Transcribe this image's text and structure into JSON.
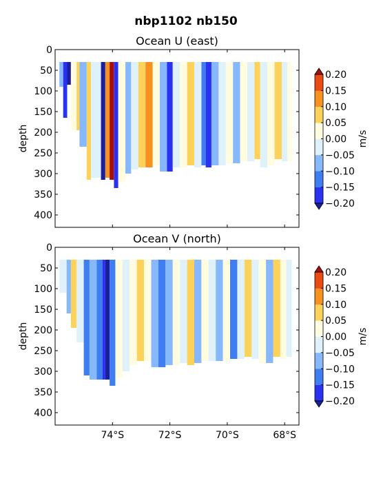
{
  "figure": {
    "title": "nbp1102 nb150"
  },
  "chart_data": [
    {
      "type": "heatmap",
      "title": "Ocean U (east)",
      "xlabel": "",
      "ylabel": "depth",
      "xlim": [
        -76.0,
        -67.5
      ],
      "ylim": [
        430,
        0
      ],
      "xtick_values": [
        -74,
        -72,
        -70,
        -68
      ],
      "xtick_labels": [
        "74°S",
        "72°S",
        "70°S",
        "68°S"
      ],
      "ytick_values": [
        0,
        50,
        100,
        150,
        200,
        250,
        300,
        350,
        400
      ],
      "ytick_labels": [
        "0",
        "50",
        "100",
        "150",
        "200",
        "250",
        "300",
        "350",
        "400"
      ],
      "colorbar": {
        "label": "m/s",
        "levels": [
          -0.2,
          -0.15,
          -0.1,
          -0.05,
          0.0,
          0.05,
          0.1,
          0.15,
          0.2
        ],
        "tick_labels": [
          "−0.20",
          "−0.15",
          "−0.10",
          "−0.05",
          "0.00",
          "0.05",
          "0.10",
          "0.15",
          "0.20"
        ],
        "colors": [
          "#2a32f0",
          "#3f7ef0",
          "#86b8fb",
          "#dff2fb",
          "#fffce0",
          "#fdd25a",
          "#f7911f",
          "#ea4a14"
        ],
        "extend_colors": {
          "under": "#1b1f9a",
          "over": "#a80f0f"
        }
      },
      "columns": [
        {
          "x0": -75.85,
          "x1": -75.72,
          "bottom": 90,
          "v": -0.07
        },
        {
          "x0": -75.72,
          "x1": -75.58,
          "bottom": 165,
          "v": -0.17
        },
        {
          "x0": -75.58,
          "x1": -75.45,
          "bottom": 85,
          "v": -0.22
        },
        {
          "x0": -75.45,
          "x1": -75.25,
          "bottom": 195,
          "v": 0.03
        },
        {
          "x0": -75.25,
          "x1": -75.15,
          "bottom": 195,
          "v": 0.08
        },
        {
          "x0": -75.15,
          "x1": -74.9,
          "bottom": 235,
          "v": -0.07
        },
        {
          "x0": -74.9,
          "x1": -74.75,
          "bottom": 315,
          "v": 0.08
        },
        {
          "x0": -74.75,
          "x1": -74.4,
          "bottom": 310,
          "v": -0.03
        },
        {
          "x0": -74.4,
          "x1": -74.25,
          "bottom": 315,
          "v": -0.22
        },
        {
          "x0": -74.25,
          "x1": -74.1,
          "bottom": 310,
          "v": 0.12
        },
        {
          "x0": -74.1,
          "x1": -73.95,
          "bottom": 315,
          "v": 0.22
        },
        {
          "x0": -73.95,
          "x1": -73.8,
          "bottom": 335,
          "v": -0.17
        },
        {
          "x0": -73.8,
          "x1": -73.55,
          "bottom": 320,
          "v": 0.03
        },
        {
          "x0": -73.55,
          "x1": -73.35,
          "bottom": 300,
          "v": -0.07
        },
        {
          "x0": -73.35,
          "x1": -73.1,
          "bottom": 290,
          "v": -0.03
        },
        {
          "x0": -73.1,
          "x1": -72.85,
          "bottom": 285,
          "v": 0.08
        },
        {
          "x0": -72.85,
          "x1": -72.6,
          "bottom": 285,
          "v": 0.12
        },
        {
          "x0": -72.6,
          "x1": -72.35,
          "bottom": 280,
          "v": 0.03
        },
        {
          "x0": -72.35,
          "x1": -72.1,
          "bottom": 295,
          "v": -0.07
        },
        {
          "x0": -72.1,
          "x1": -71.9,
          "bottom": 295,
          "v": -0.17
        },
        {
          "x0": -71.9,
          "x1": -71.65,
          "bottom": 285,
          "v": -0.03
        },
        {
          "x0": -71.65,
          "x1": -71.4,
          "bottom": 285,
          "v": 0.03
        },
        {
          "x0": -71.4,
          "x1": -71.15,
          "bottom": 280,
          "v": 0.08
        },
        {
          "x0": -71.15,
          "x1": -70.9,
          "bottom": 285,
          "v": -0.03
        },
        {
          "x0": -70.9,
          "x1": -70.75,
          "bottom": 280,
          "v": -0.12
        },
        {
          "x0": -70.75,
          "x1": -70.55,
          "bottom": 285,
          "v": -0.17
        },
        {
          "x0": -70.55,
          "x1": -70.3,
          "bottom": 280,
          "v": -0.07
        },
        {
          "x0": -70.3,
          "x1": -70.05,
          "bottom": 280,
          "v": -0.03
        },
        {
          "x0": -70.05,
          "x1": -69.8,
          "bottom": 275,
          "v": 0.03
        },
        {
          "x0": -69.8,
          "x1": -69.55,
          "bottom": 275,
          "v": -0.07
        },
        {
          "x0": -69.55,
          "x1": -69.3,
          "bottom": 270,
          "v": 0.03
        },
        {
          "x0": -69.3,
          "x1": -69.05,
          "bottom": 270,
          "v": -0.03
        },
        {
          "x0": -69.05,
          "x1": -68.85,
          "bottom": 265,
          "v": 0.08
        },
        {
          "x0": -68.85,
          "x1": -68.6,
          "bottom": 285,
          "v": -0.03
        },
        {
          "x0": -68.6,
          "x1": -68.35,
          "bottom": 280,
          "v": 0.03
        },
        {
          "x0": -68.35,
          "x1": -68.1,
          "bottom": 265,
          "v": 0.08
        },
        {
          "x0": -68.1,
          "x1": -67.9,
          "bottom": 270,
          "v": -0.03
        },
        {
          "x0": -67.9,
          "x1": -67.75,
          "bottom": 270,
          "v": 0.03
        }
      ]
    },
    {
      "type": "heatmap",
      "title": "Ocean V (north)",
      "xlabel": "",
      "ylabel": "depth",
      "xlim": [
        -76.0,
        -67.5
      ],
      "ylim": [
        430,
        0
      ],
      "xtick_values": [
        -74,
        -72,
        -70,
        -68
      ],
      "xtick_labels": [
        "74°S",
        "72°S",
        "70°S",
        "68°S"
      ],
      "ytick_values": [
        0,
        50,
        100,
        150,
        200,
        250,
        300,
        350,
        400
      ],
      "ytick_labels": [
        "0",
        "50",
        "100",
        "150",
        "200",
        "250",
        "300",
        "350",
        "400"
      ],
      "colorbar": {
        "label": "m/s",
        "levels": [
          -0.2,
          -0.15,
          -0.1,
          -0.05,
          0.0,
          0.05,
          0.1,
          0.15,
          0.2
        ],
        "tick_labels": [
          "−0.20",
          "−0.15",
          "−0.10",
          "−0.05",
          "0.00",
          "0.05",
          "0.10",
          "0.15",
          "0.20"
        ],
        "colors": [
          "#2a32f0",
          "#3f7ef0",
          "#86b8fb",
          "#dff2fb",
          "#fffce0",
          "#fdd25a",
          "#f7911f",
          "#ea4a14"
        ],
        "extend_colors": {
          "under": "#1b1f9a",
          "over": "#a80f0f"
        }
      },
      "columns": [
        {
          "x0": -75.85,
          "x1": -75.6,
          "bottom": 110,
          "v": -0.03
        },
        {
          "x0": -75.6,
          "x1": -75.45,
          "bottom": 160,
          "v": -0.07
        },
        {
          "x0": -75.45,
          "x1": -75.25,
          "bottom": 195,
          "v": 0.08
        },
        {
          "x0": -75.25,
          "x1": -75.0,
          "bottom": 230,
          "v": -0.03
        },
        {
          "x0": -75.0,
          "x1": -74.8,
          "bottom": 310,
          "v": -0.12
        },
        {
          "x0": -74.8,
          "x1": -74.55,
          "bottom": 320,
          "v": -0.07
        },
        {
          "x0": -74.55,
          "x1": -74.35,
          "bottom": 320,
          "v": -0.12
        },
        {
          "x0": -74.35,
          "x1": -74.25,
          "bottom": 320,
          "v": -0.17
        },
        {
          "x0": -74.25,
          "x1": -74.1,
          "bottom": 320,
          "v": -0.22
        },
        {
          "x0": -74.1,
          "x1": -73.9,
          "bottom": 335,
          "v": -0.12
        },
        {
          "x0": -73.9,
          "x1": -73.65,
          "bottom": 315,
          "v": 0.03
        },
        {
          "x0": -73.65,
          "x1": -73.4,
          "bottom": 300,
          "v": -0.03
        },
        {
          "x0": -73.4,
          "x1": -73.15,
          "bottom": 285,
          "v": 0.03
        },
        {
          "x0": -73.15,
          "x1": -72.9,
          "bottom": 275,
          "v": 0.08
        },
        {
          "x0": -72.9,
          "x1": -72.65,
          "bottom": 275,
          "v": 0.03
        },
        {
          "x0": -72.65,
          "x1": -72.4,
          "bottom": 290,
          "v": -0.07
        },
        {
          "x0": -72.4,
          "x1": -72.15,
          "bottom": 290,
          "v": -0.12
        },
        {
          "x0": -72.15,
          "x1": -71.9,
          "bottom": 285,
          "v": -0.07
        },
        {
          "x0": -71.9,
          "x1": -71.65,
          "bottom": 285,
          "v": 0.03
        },
        {
          "x0": -71.65,
          "x1": -71.4,
          "bottom": 280,
          "v": -0.03
        },
        {
          "x0": -71.4,
          "x1": -71.15,
          "bottom": 285,
          "v": 0.08
        },
        {
          "x0": -71.15,
          "x1": -70.9,
          "bottom": 280,
          "v": -0.07
        },
        {
          "x0": -70.9,
          "x1": -70.65,
          "bottom": 275,
          "v": 0.03
        },
        {
          "x0": -70.65,
          "x1": -70.4,
          "bottom": 275,
          "v": -0.03
        },
        {
          "x0": -70.4,
          "x1": -70.15,
          "bottom": 275,
          "v": -0.07
        },
        {
          "x0": -70.15,
          "x1": -69.9,
          "bottom": 275,
          "v": 0.03
        },
        {
          "x0": -69.9,
          "x1": -69.65,
          "bottom": 270,
          "v": -0.12
        },
        {
          "x0": -69.65,
          "x1": -69.4,
          "bottom": 270,
          "v": -0.03
        },
        {
          "x0": -69.4,
          "x1": -69.15,
          "bottom": 265,
          "v": 0.08
        },
        {
          "x0": -69.15,
          "x1": -68.9,
          "bottom": 270,
          "v": -0.03
        },
        {
          "x0": -68.9,
          "x1": -68.65,
          "bottom": 280,
          "v": 0.03
        },
        {
          "x0": -68.65,
          "x1": -68.4,
          "bottom": 280,
          "v": -0.07
        },
        {
          "x0": -68.4,
          "x1": -68.15,
          "bottom": 265,
          "v": 0.08
        },
        {
          "x0": -68.15,
          "x1": -67.95,
          "bottom": 270,
          "v": 0.03
        },
        {
          "x0": -67.95,
          "x1": -67.75,
          "bottom": 265,
          "v": -0.03
        }
      ]
    }
  ]
}
